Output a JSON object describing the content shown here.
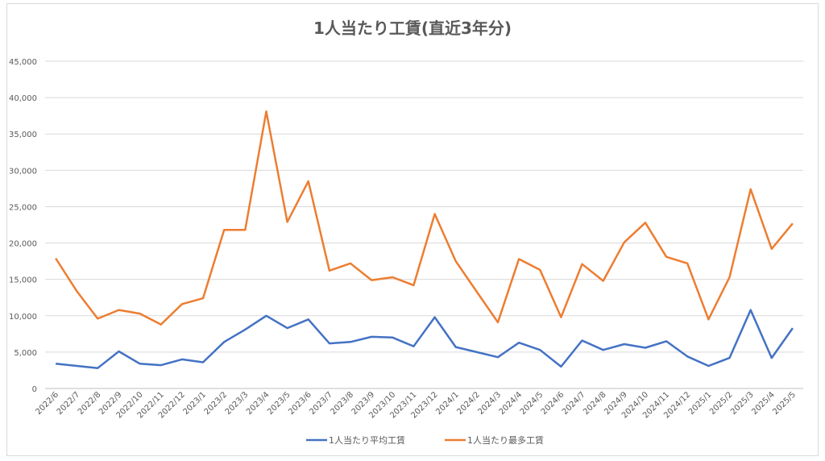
{
  "chart_data": {
    "type": "line",
    "title": "1人当たり工賃(直近3年分)",
    "categories": [
      "2022/6",
      "2022/7",
      "2022/8",
      "2022/9",
      "2022/10",
      "2022/11",
      "2022/12",
      "2023/1",
      "2023/2",
      "2023/3",
      "2023/4",
      "2023/5",
      "2023/6",
      "2023/7",
      "2023/8",
      "2023/9",
      "2023/10",
      "2023/11",
      "2023/12",
      "2024/1",
      "2024/2",
      "2024/3",
      "2024/4",
      "2024/5",
      "2024/6",
      "2024/7",
      "2024/8",
      "2024/9",
      "2024/10",
      "2024/11",
      "2024/12",
      "2025/1",
      "2025/2",
      "2025/3",
      "2025/4",
      "2025/5"
    ],
    "ylim": [
      0,
      45000
    ],
    "yticks": [
      "0",
      "5,000",
      "10,000",
      "15,000",
      "20,000",
      "25,000",
      "30,000",
      "35,000",
      "40,000",
      "45,000"
    ],
    "ytick_values": [
      0,
      5000,
      10000,
      15000,
      20000,
      25000,
      30000,
      35000,
      40000,
      45000
    ],
    "grid": true,
    "legend_position": "bottom",
    "series": [
      {
        "name": "1人当たり平均工賃",
        "color": "#4472c4",
        "values": [
          3400,
          3100,
          2800,
          5100,
          3400,
          3200,
          4000,
          3600,
          6400,
          8100,
          10000,
          8300,
          9500,
          6200,
          6400,
          7100,
          7000,
          5800,
          9800,
          5700,
          5000,
          4300,
          6300,
          5300,
          3000,
          6600,
          5300,
          6100,
          5600,
          6500,
          4400,
          3100,
          4200,
          10800,
          4200,
          8300
        ]
      },
      {
        "name": "1人当たり最多工賃",
        "color": "#ed7d31",
        "values": [
          17900,
          13400,
          9600,
          10800,
          10300,
          8800,
          11600,
          12400,
          21800,
          21800,
          38100,
          22900,
          28500,
          16200,
          17200,
          14900,
          15300,
          14200,
          24000,
          17500,
          13300,
          9100,
          17800,
          16300,
          9800,
          17100,
          14800,
          20100,
          22800,
          18100,
          17200,
          9500,
          15300,
          27400,
          19200,
          22700
        ]
      }
    ]
  }
}
